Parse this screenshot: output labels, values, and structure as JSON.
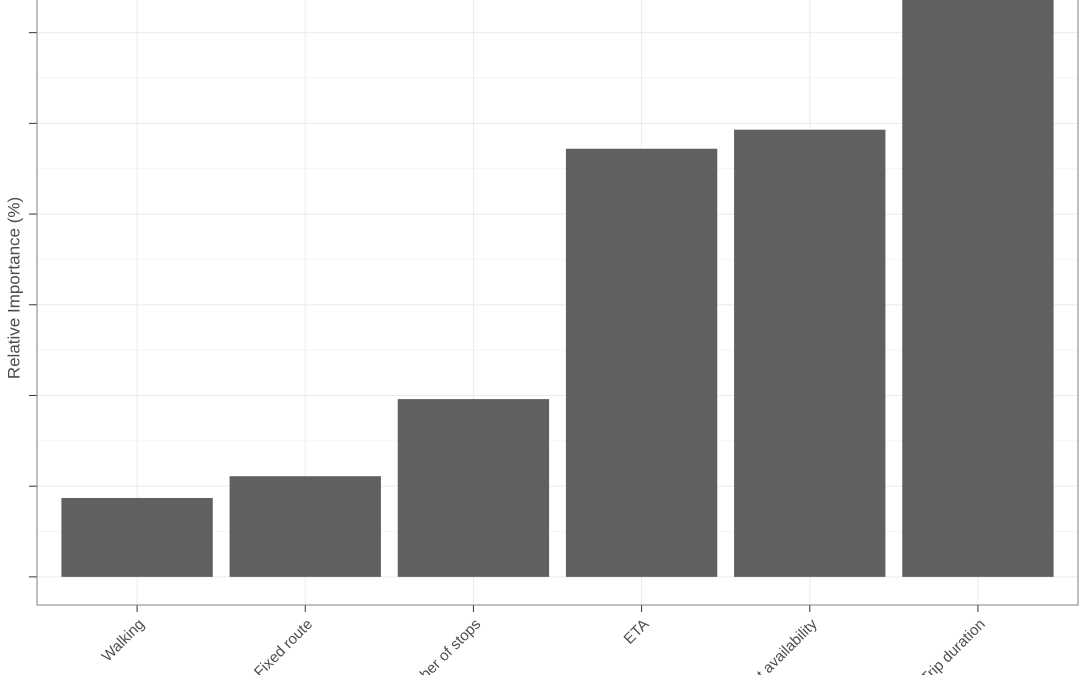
{
  "chart_data": {
    "type": "bar",
    "y_label": "Relative Importance (%)",
    "categories": [
      "Walking",
      "Fixed route",
      "Number of stops",
      "ETA",
      "Seat availability",
      "Trip duration"
    ],
    "values": [
      4.35,
      5.55,
      9.8,
      23.6,
      24.65,
      32.05
    ],
    "color": "#606062",
    "ylim": [
      -1.55,
      31.8
    ],
    "yticks": [
      0,
      5,
      10,
      15,
      20,
      25,
      30
    ],
    "grid": true
  }
}
